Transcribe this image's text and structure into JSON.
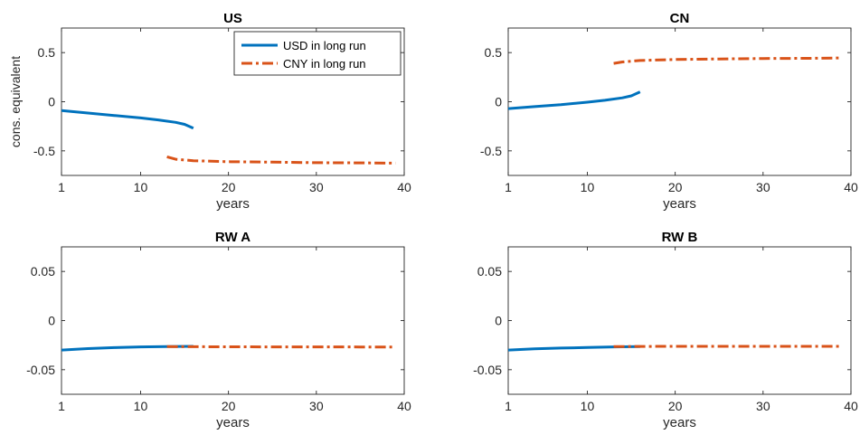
{
  "figure": {
    "legend": {
      "entries": [
        {
          "label": "USD in long run",
          "color": "#0072BD",
          "style": "solid"
        },
        {
          "label": "CNY in long run",
          "color": "#D95319",
          "style": "dashdot"
        }
      ]
    }
  },
  "chart_data": [
    {
      "type": "line",
      "title": "US",
      "xlabel": "years",
      "ylabel": "cons. equivalent",
      "xlim": [
        1,
        40
      ],
      "ylim": [
        -0.75,
        0.75
      ],
      "xticks": [
        1,
        10,
        20,
        30,
        40
      ],
      "yticks": [
        0.5,
        0,
        -0.5
      ],
      "ytick_labels": [
        "0.5",
        "0",
        "-0.5"
      ],
      "grid": false,
      "legend_position": "top-right",
      "series": [
        {
          "name": "USD in long run",
          "color": "#0072BD",
          "style": "solid",
          "x": [
            1,
            4,
            7,
            10,
            12,
            14,
            15,
            16
          ],
          "y": [
            -0.09,
            -0.115,
            -0.14,
            -0.165,
            -0.185,
            -0.21,
            -0.23,
            -0.27
          ]
        },
        {
          "name": "CNY in long run",
          "color": "#D95319",
          "style": "dashdot",
          "x": [
            13,
            14,
            16,
            20,
            25,
            30,
            35,
            39
          ],
          "y": [
            -0.56,
            -0.585,
            -0.6,
            -0.61,
            -0.615,
            -0.62,
            -0.622,
            -0.625
          ]
        }
      ]
    },
    {
      "type": "line",
      "title": "CN",
      "xlabel": "years",
      "ylabel": "",
      "xlim": [
        1,
        40
      ],
      "ylim": [
        -0.75,
        0.75
      ],
      "xticks": [
        1,
        10,
        20,
        30,
        40
      ],
      "yticks": [
        0.5,
        0,
        -0.5
      ],
      "ytick_labels": [
        "0.5",
        "0",
        "-0.5"
      ],
      "grid": false,
      "series": [
        {
          "name": "USD in long run",
          "color": "#0072BD",
          "style": "solid",
          "x": [
            1,
            4,
            7,
            10,
            12,
            14,
            15,
            16
          ],
          "y": [
            -0.07,
            -0.05,
            -0.03,
            -0.005,
            0.015,
            0.04,
            0.06,
            0.1
          ]
        },
        {
          "name": "CNY in long run",
          "color": "#D95319",
          "style": "dashdot",
          "x": [
            13,
            14,
            16,
            20,
            25,
            30,
            35,
            39
          ],
          "y": [
            0.39,
            0.405,
            0.42,
            0.43,
            0.435,
            0.44,
            0.442,
            0.445
          ]
        }
      ]
    },
    {
      "type": "line",
      "title": "RW A",
      "xlabel": "years",
      "ylabel": "",
      "xlim": [
        1,
        40
      ],
      "ylim": [
        -0.075,
        0.075
      ],
      "xticks": [
        1,
        10,
        20,
        30,
        40
      ],
      "yticks": [
        0.05,
        0,
        -0.05
      ],
      "ytick_labels": [
        "0.05",
        "0",
        "-0.05"
      ],
      "grid": false,
      "series": [
        {
          "name": "USD in long run",
          "color": "#0072BD",
          "style": "solid",
          "x": [
            1,
            4,
            7,
            10,
            13,
            16
          ],
          "y": [
            -0.03,
            -0.0285,
            -0.0275,
            -0.0268,
            -0.0264,
            -0.0262
          ]
        },
        {
          "name": "CNY in long run",
          "color": "#D95319",
          "style": "dashdot",
          "x": [
            13,
            16,
            20,
            25,
            30,
            35,
            39
          ],
          "y": [
            -0.0265,
            -0.0266,
            -0.0267,
            -0.0268,
            -0.0268,
            -0.0269,
            -0.027
          ]
        }
      ]
    },
    {
      "type": "line",
      "title": "RW B",
      "xlabel": "years",
      "ylabel": "",
      "xlim": [
        1,
        40
      ],
      "ylim": [
        -0.075,
        0.075
      ],
      "xticks": [
        1,
        10,
        20,
        30,
        40
      ],
      "yticks": [
        0.05,
        0,
        -0.05
      ],
      "ytick_labels": [
        "0.05",
        "0",
        "-0.05"
      ],
      "grid": false,
      "series": [
        {
          "name": "USD in long run",
          "color": "#0072BD",
          "style": "solid",
          "x": [
            1,
            4,
            7,
            10,
            13,
            16
          ],
          "y": [
            -0.03,
            -0.0288,
            -0.028,
            -0.0274,
            -0.0268,
            -0.0264
          ]
        },
        {
          "name": "CNY in long run",
          "color": "#D95319",
          "style": "dashdot",
          "x": [
            13,
            16,
            20,
            25,
            30,
            35,
            39
          ],
          "y": [
            -0.0265,
            -0.0263,
            -0.0262,
            -0.0262,
            -0.0262,
            -0.0262,
            -0.0262
          ]
        }
      ]
    }
  ]
}
